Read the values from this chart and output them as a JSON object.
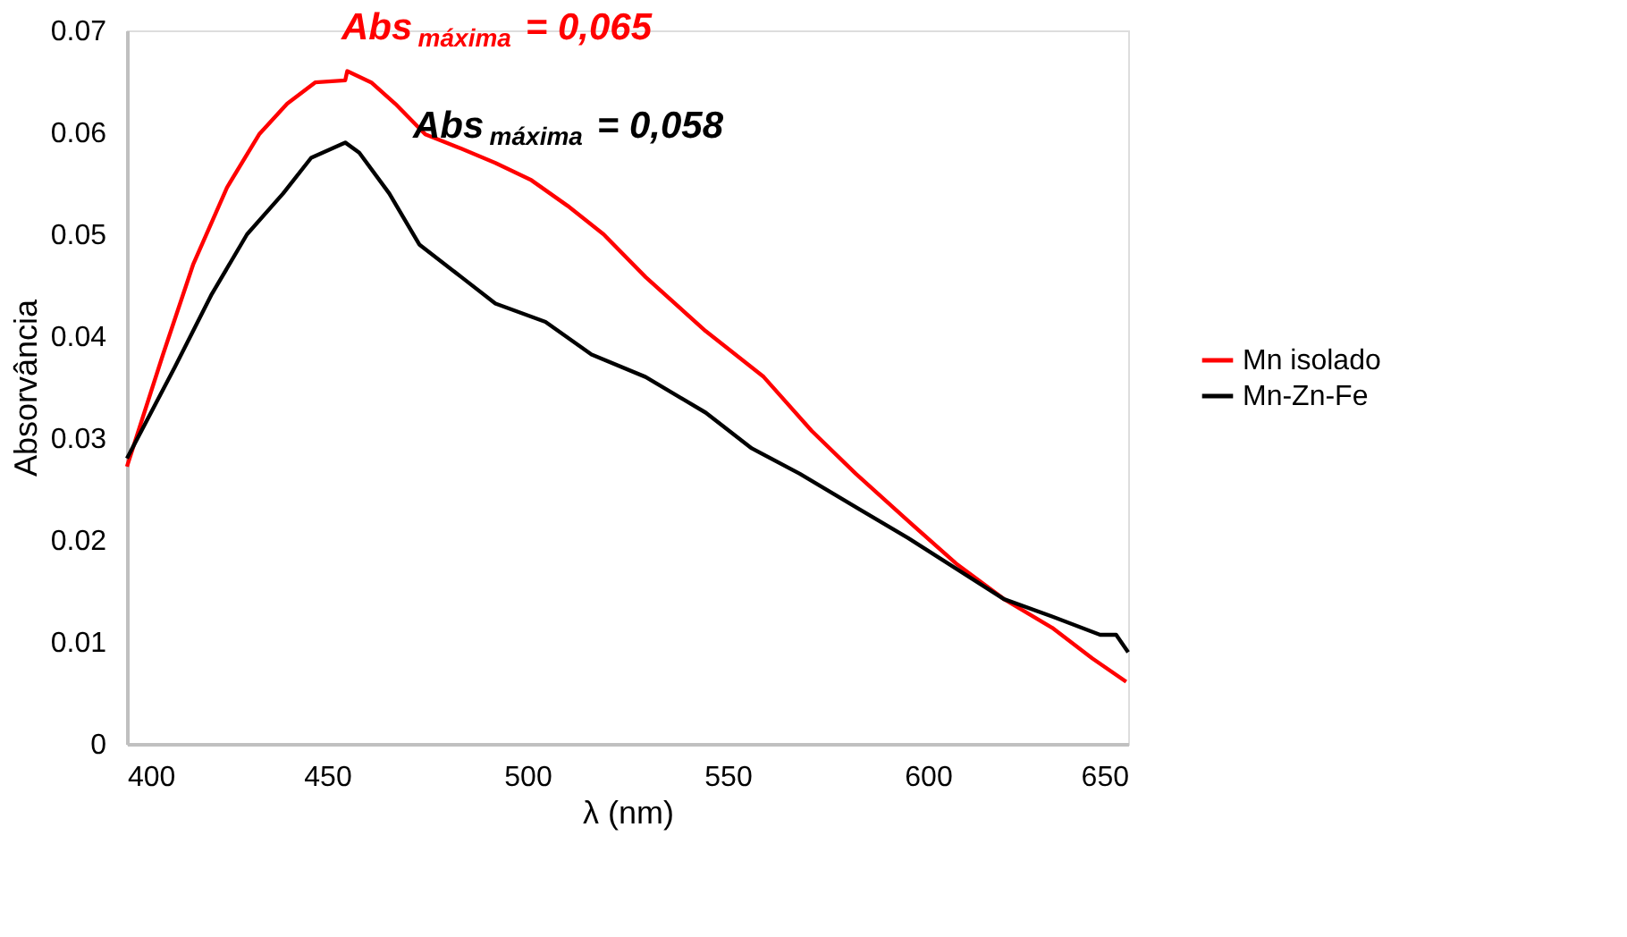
{
  "chart_data": {
    "type": "line",
    "xlabel": "λ (nm)",
    "ylabel": "Absorvância",
    "xlim": [
      400,
      650
    ],
    "xticks": [
      400,
      450,
      500,
      550,
      600,
      650
    ],
    "ylim": [
      0,
      0.07
    ],
    "yticks": [
      0,
      0.01,
      0.02,
      0.03,
      0.04,
      0.05,
      0.06,
      0.07
    ],
    "grid": false,
    "legend": "right",
    "annotations": [
      "Abs$_{máxima}$ = 0,065",
      "Abs$_{máxima}$ = 0,058"
    ],
    "series": [
      {
        "name": "Mn isolado",
        "color": "#ff0000",
        "x": [
          400,
          409,
          416.5,
          425,
          433,
          440,
          447,
          454.5,
          455,
          461,
          467,
          474.5,
          483.5,
          492,
          501,
          510,
          519,
          529.5,
          544.5,
          559,
          571,
          582,
          595,
          607,
          619,
          631,
          641,
          649.5
        ],
        "values": [
          0.0272,
          0.0382,
          0.047,
          0.0546,
          0.0598,
          0.0628,
          0.0649,
          0.0651,
          0.066,
          0.0649,
          0.0628,
          0.0598,
          0.0584,
          0.057,
          0.0553,
          0.0528,
          0.05,
          0.0458,
          0.0405,
          0.036,
          0.0307,
          0.0265,
          0.0219,
          0.0177,
          0.0142,
          0.0114,
          0.0084,
          0.0061
        ]
      },
      {
        "name": "Mn-Zn-Fe",
        "color": "#000000",
        "x": [
          400,
          412,
          421,
          430,
          439,
          446,
          454.5,
          458,
          465.5,
          473,
          483.5,
          492,
          504.5,
          516,
          529.5,
          544.5,
          556,
          568,
          583,
          595,
          607,
          619,
          631,
          643,
          647,
          650
        ],
        "values": [
          0.028,
          0.037,
          0.044,
          0.05,
          0.054,
          0.0575,
          0.059,
          0.058,
          0.054,
          0.049,
          0.0458,
          0.0432,
          0.0414,
          0.0382,
          0.036,
          0.0325,
          0.029,
          0.0265,
          0.023,
          0.0202,
          0.0172,
          0.0142,
          0.0125,
          0.0107,
          0.0107,
          0.009
        ]
      }
    ]
  }
}
